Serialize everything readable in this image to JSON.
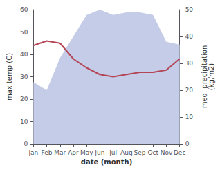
{
  "chart_data": {
    "type": "line",
    "xlabel": "date (month)",
    "ylabel": "max temp (C)",
    "y2label": "med. precipitation\n(kg/m2)",
    "categories": [
      "Jan",
      "Feb",
      "Mar",
      "Apr",
      "May",
      "Jun",
      "Jul",
      "Aug",
      "Sep",
      "Oct",
      "Nov",
      "Dec"
    ],
    "series": [
      {
        "type": "area",
        "axis": "y2",
        "color": "#c5cce8",
        "values": [
          23,
          20,
          32,
          40,
          48,
          50,
          48,
          49,
          49,
          48,
          38,
          37
        ]
      },
      {
        "type": "line",
        "color": "#b34555",
        "values": [
          44,
          46,
          45,
          38,
          34,
          31,
          30,
          31,
          32,
          32,
          33,
          38
        ]
      }
    ],
    "ylim": [
      0,
      60
    ],
    "yticks": [
      0,
      10,
      20,
      30,
      40,
      50,
      60
    ],
    "y2lim": [
      0,
      50
    ],
    "y2ticks": [
      0,
      10,
      20,
      30,
      40,
      50
    ],
    "grid": false
  }
}
